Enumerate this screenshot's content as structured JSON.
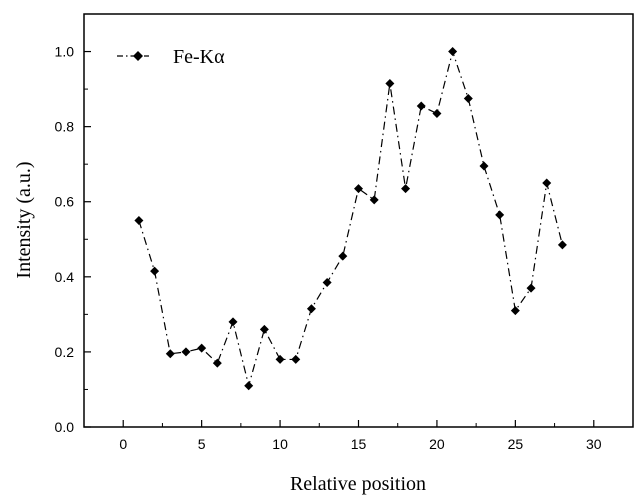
{
  "chart_data": {
    "type": "line",
    "xlabel": "Relative position",
    "ylabel": "Intensity (a.u.)",
    "xlim": [
      -2.5,
      32.5
    ],
    "ylim": [
      0.0,
      1.1
    ],
    "x_ticks": [
      0,
      5,
      10,
      15,
      20,
      25,
      30
    ],
    "y_ticks": [
      0.0,
      0.2,
      0.4,
      0.6,
      0.8,
      1.0
    ],
    "x_tick_labels": [
      "0",
      "5",
      "10",
      "15",
      "20",
      "25",
      "30"
    ],
    "y_tick_labels": [
      "0.0",
      "0.2",
      "0.4",
      "0.6",
      "0.8",
      "1.0"
    ],
    "grid": false,
    "legend_position": "top-left",
    "series": [
      {
        "name": "Fe-Kα",
        "color": "#000000",
        "line_style": "dash-dot",
        "marker": "diamond",
        "x": [
          1,
          2,
          3,
          4,
          5,
          6,
          7,
          8,
          9,
          10,
          11,
          12,
          13,
          14,
          15,
          16,
          17,
          18,
          19,
          20,
          21,
          22,
          23,
          24,
          25,
          26,
          27,
          28
        ],
        "y": [
          0.55,
          0.415,
          0.195,
          0.2,
          0.21,
          0.17,
          0.28,
          0.11,
          0.26,
          0.18,
          0.18,
          0.315,
          0.385,
          0.455,
          0.635,
          0.605,
          0.915,
          0.635,
          0.855,
          0.835,
          1.0,
          0.875,
          0.695,
          0.565,
          0.31,
          0.37,
          0.65,
          0.485
        ]
      }
    ]
  }
}
